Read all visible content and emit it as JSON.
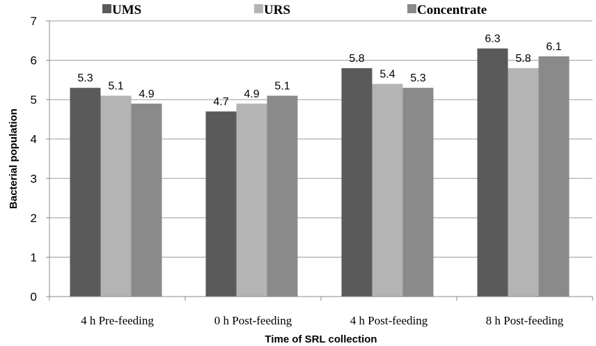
{
  "chart_data": {
    "type": "bar",
    "title": "",
    "xlabel": "Time of SRL collection",
    "ylabel": "Bacterial population",
    "ylim": [
      0,
      7
    ],
    "yticks": [
      0,
      1,
      2,
      3,
      4,
      5,
      6,
      7
    ],
    "grid": true,
    "legend_position": "top",
    "categories": [
      "4 h Pre-feeding",
      "0 h Post-feeding",
      "4 h Post-feeding",
      "8 h Post-feeding"
    ],
    "series": [
      {
        "name": "UMS",
        "color": "#5a5a5a",
        "values": [
          5.3,
          4.7,
          5.8,
          6.3
        ]
      },
      {
        "name": "URS",
        "color": "#b4b4b4",
        "values": [
          5.1,
          4.9,
          5.4,
          5.8
        ]
      },
      {
        "name": "Concentrate",
        "color": "#8a8a8a",
        "values": [
          4.9,
          5.1,
          5.3,
          6.1
        ]
      }
    ]
  }
}
